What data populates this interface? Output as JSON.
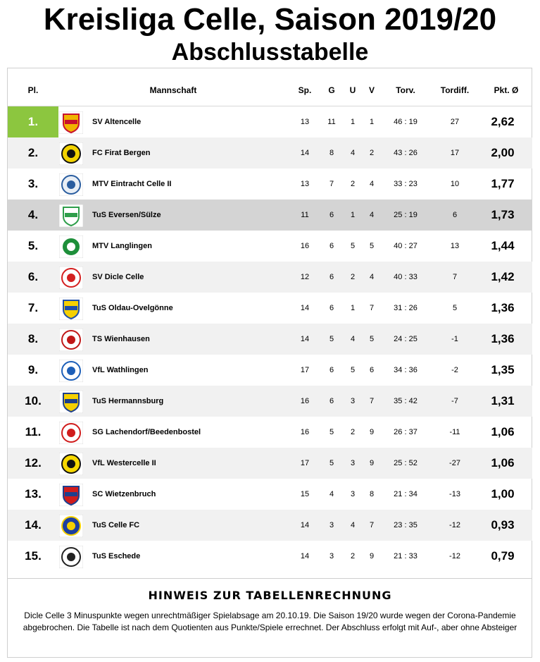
{
  "title": "Kreisliga Celle, Saison 2019/20",
  "subtitle": "Abschlusstabelle",
  "columns": {
    "pl": "Pl.",
    "team": "Mannschaft",
    "sp": "Sp.",
    "g": "G",
    "u": "U",
    "v": "V",
    "torv": "Torv.",
    "tordiff": "Tordiff.",
    "pkt": "Pkt. Ø"
  },
  "rows": [
    {
      "pl": "1.",
      "team": "SV Altencelle",
      "sp": "13",
      "g": "11",
      "u": "1",
      "v": "1",
      "torv": "46 : 19",
      "tordiff": "27",
      "pkt": "2,62",
      "logo": "sv-altencelle-logo",
      "c1": "#f0b400",
      "c2": "#c8102e"
    },
    {
      "pl": "2.",
      "team": "FC Firat Bergen",
      "sp": "14",
      "g": "8",
      "u": "4",
      "v": "2",
      "torv": "43 : 26",
      "tordiff": "17",
      "pkt": "2,00",
      "logo": "fc-firat-bergen-logo",
      "c1": "#f2d200",
      "c2": "#111111"
    },
    {
      "pl": "3.",
      "team": "MTV Eintracht Celle II",
      "sp": "13",
      "g": "7",
      "u": "2",
      "v": "4",
      "torv": "33 : 23",
      "tordiff": "10",
      "pkt": "1,77",
      "logo": "mtv-eintracht-celle-logo",
      "c1": "#e8eef5",
      "c2": "#2a5d9f"
    },
    {
      "pl": "4.",
      "team": "TuS Eversen/Sülze",
      "sp": "11",
      "g": "6",
      "u": "1",
      "v": "4",
      "torv": "25 : 19",
      "tordiff": "6",
      "pkt": "1,73",
      "logo": "tus-eversen-suelze-logo",
      "c1": "#ffffff",
      "c2": "#2e9e4a"
    },
    {
      "pl": "5.",
      "team": "MTV Langlingen",
      "sp": "16",
      "g": "6",
      "u": "5",
      "v": "5",
      "torv": "40 : 27",
      "tordiff": "13",
      "pkt": "1,44",
      "logo": "mtv-langlingen-logo",
      "c1": "#1e8f3a",
      "c2": "#ffffff"
    },
    {
      "pl": "6.",
      "team": "SV Dicle Celle",
      "sp": "12",
      "g": "6",
      "u": "2",
      "v": "4",
      "torv": "40 : 33",
      "tordiff": "7",
      "pkt": "1,42",
      "logo": "sv-dicle-celle-logo",
      "c1": "#ffffff",
      "c2": "#d42020"
    },
    {
      "pl": "7.",
      "team": "TuS Oldau-Ovelgönne",
      "sp": "14",
      "g": "6",
      "u": "1",
      "v": "7",
      "torv": "31 : 26",
      "tordiff": "5",
      "pkt": "1,36",
      "logo": "tus-oldau-ovelgoenne-logo",
      "c1": "#f5d000",
      "c2": "#1f4fa8"
    },
    {
      "pl": "8.",
      "team": "TS Wienhausen",
      "sp": "14",
      "g": "5",
      "u": "4",
      "v": "5",
      "torv": "24 : 25",
      "tordiff": "-1",
      "pkt": "1,36",
      "logo": "ts-wienhausen-logo",
      "c1": "#ffffff",
      "c2": "#c01818"
    },
    {
      "pl": "9.",
      "team": "VfL Wathlingen",
      "sp": "17",
      "g": "6",
      "u": "5",
      "v": "6",
      "torv": "34 : 36",
      "tordiff": "-2",
      "pkt": "1,35",
      "logo": "vfl-wathlingen-logo",
      "c1": "#ffffff",
      "c2": "#1d5fb8"
    },
    {
      "pl": "10.",
      "team": "TuS Hermannsburg",
      "sp": "16",
      "g": "6",
      "u": "3",
      "v": "7",
      "torv": "35 : 42",
      "tordiff": "-7",
      "pkt": "1,31",
      "logo": "tus-hermannsburg-logo",
      "c1": "#f5d000",
      "c2": "#1e3f8a"
    },
    {
      "pl": "11.",
      "team": "SG Lachendorf/Beedenbostel",
      "sp": "16",
      "g": "5",
      "u": "2",
      "v": "9",
      "torv": "26 : 37",
      "tordiff": "-11",
      "pkt": "1,06",
      "logo": "sg-lachendorf-logo",
      "c1": "#ffffff",
      "c2": "#d01c1c"
    },
    {
      "pl": "12.",
      "team": "VfL Westercelle II",
      "sp": "17",
      "g": "5",
      "u": "3",
      "v": "9",
      "torv": "25 : 52",
      "tordiff": "-27",
      "pkt": "1,06",
      "logo": "vfl-westercelle-logo",
      "c1": "#f7d800",
      "c2": "#111111"
    },
    {
      "pl": "13.",
      "team": "SC Wietzenbruch",
      "sp": "15",
      "g": "4",
      "u": "3",
      "v": "8",
      "torv": "21 : 34",
      "tordiff": "-13",
      "pkt": "1,00",
      "logo": "sc-wietzenbruch-logo",
      "c1": "#d01c1c",
      "c2": "#1d3f8f"
    },
    {
      "pl": "14.",
      "team": "TuS Celle FC",
      "sp": "14",
      "g": "3",
      "u": "4",
      "v": "7",
      "torv": "23 : 35",
      "tordiff": "-12",
      "pkt": "0,93",
      "logo": "tus-celle-fc-logo",
      "c1": "#1d3f9f",
      "c2": "#f5d000"
    },
    {
      "pl": "15.",
      "team": "TuS Eschede",
      "sp": "14",
      "g": "3",
      "u": "2",
      "v": "9",
      "torv": "21 : 33",
      "tordiff": "-12",
      "pkt": "0,79",
      "logo": "tus-eschede-logo",
      "c1": "#ffffff",
      "c2": "#222222"
    }
  ],
  "note": {
    "title": "HINWEIS ZUR TABELLENRECHNUNG",
    "text": "Dicle Celle 3 Minuspunkte wegen unrechtmäßiger Spielabsage am 20.10.19. Die Saison 19/20 wurde wegen der Corona-Pandemie abgebrochen. Die Tabelle ist nach dem Quotienten aus Punkte/Spiele errechnet. Der Abschluss erfolgt mit Auf-, aber ohne Absteiger"
  }
}
